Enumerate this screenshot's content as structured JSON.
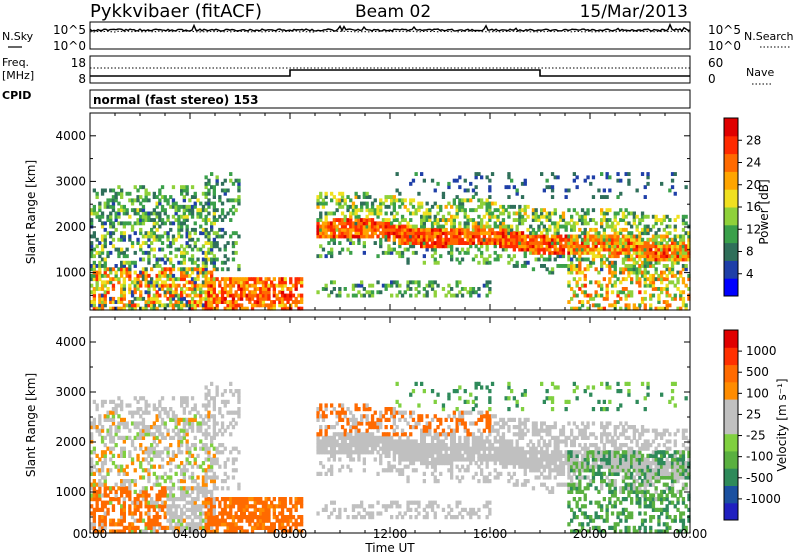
{
  "header": {
    "station": "Pykkvibaer (fitACF)",
    "beam": "Beam 02",
    "date": "15/Mar/2013"
  },
  "panels": {
    "nsky_label": "N.Sky",
    "nsearch_label": "N.Search",
    "freq_label_top": "Freq.",
    "freq_label_unit": "[MHz]",
    "nave_label": "Nave",
    "cpid_label": "CPID",
    "cpid_value": "normal (fast stereo) 153",
    "noise_ticks_left": [
      "10^5",
      "10^0"
    ],
    "noise_ticks_right": [
      "10^5",
      "10^0"
    ],
    "freq_ticks_left": [
      "18",
      "8"
    ],
    "nave_ticks_right": [
      "60",
      "0"
    ]
  },
  "chart_data": [
    {
      "type": "heatmap",
      "quantity": "Power",
      "xlabel": "Time UT",
      "ylabel": "Slant Range [km]",
      "x_ticks": [
        "00:00",
        "04:00",
        "08:00",
        "12:00",
        "16:00",
        "20:00",
        "00:00"
      ],
      "y_ticks": [
        "1000",
        "2000",
        "3000",
        "4000"
      ],
      "ylim": [
        180,
        4500
      ],
      "colorbar_label": "Power [dB]",
      "colorbar_ticks": [
        "4",
        "8",
        "12",
        "16",
        "20",
        "24",
        "28"
      ],
      "colorbar_colors": [
        "#0000ff",
        "#1f3fa8",
        "#2f6f5a",
        "#3aa04a",
        "#8fd13a",
        "#f0e020",
        "#ffa500",
        "#ff6a00",
        "#ff2a00",
        "#e00000"
      ]
    },
    {
      "type": "heatmap",
      "quantity": "Velocity",
      "xlabel": "Time UT",
      "ylabel": "Slant Range [km]",
      "x_ticks": [
        "00:00",
        "04:00",
        "08:00",
        "12:00",
        "16:00",
        "20:00",
        "00:00"
      ],
      "y_ticks": [
        "1000",
        "2000",
        "3000",
        "4000"
      ],
      "ylim": [
        180,
        4500
      ],
      "colorbar_label": "Velocity [m s⁻¹]",
      "colorbar_ticks": [
        "1000",
        "500",
        "100",
        "25",
        "-25",
        "-100",
        "-500",
        "-1000"
      ],
      "colorbar_colors": [
        "#2020c0",
        "#1a50a0",
        "#2e8a5a",
        "#5ab040",
        "#80d040",
        "#c0c0c0",
        "#c0c0c0",
        "#ff8c00",
        "#ff6a00",
        "#ff3000",
        "#e00000"
      ]
    }
  ]
}
